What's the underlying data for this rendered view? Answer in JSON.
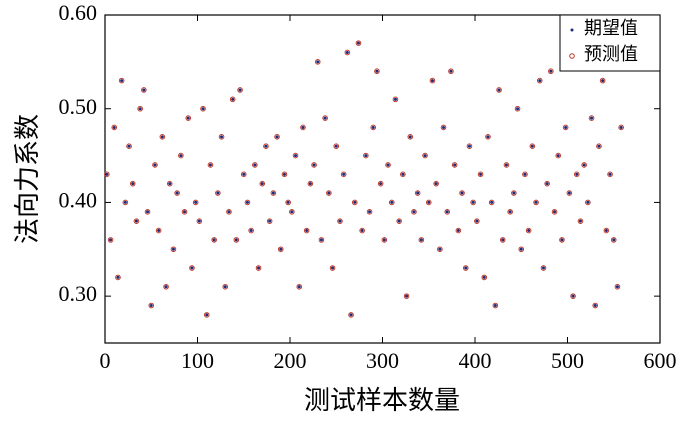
{
  "chart_data": {
    "type": "scatter",
    "xlabel": "测试样本数量",
    "ylabel": "法向力系数",
    "x": [
      2,
      6,
      10,
      14,
      18,
      22,
      26,
      30,
      34,
      38,
      42,
      46,
      50,
      54,
      58,
      62,
      66,
      70,
      74,
      78,
      82,
      86,
      90,
      94,
      98,
      102,
      106,
      110,
      114,
      118,
      122,
      126,
      130,
      134,
      138,
      142,
      146,
      150,
      154,
      158,
      162,
      166,
      170,
      174,
      178,
      182,
      186,
      190,
      194,
      198,
      202,
      206,
      210,
      214,
      218,
      222,
      226,
      230,
      234,
      238,
      242,
      246,
      250,
      254,
      258,
      262,
      266,
      270,
      274,
      278,
      282,
      286,
      290,
      294,
      298,
      302,
      306,
      310,
      314,
      318,
      322,
      326,
      330,
      334,
      338,
      342,
      346,
      350,
      354,
      358,
      362,
      366,
      370,
      374,
      378,
      382,
      386,
      390,
      394,
      398,
      402,
      406,
      410,
      414,
      418,
      422,
      426,
      430,
      434,
      438,
      442,
      446,
      450,
      454,
      458,
      462,
      466,
      470,
      474,
      478,
      482,
      486,
      490,
      494,
      498,
      502,
      506,
      510,
      514,
      518,
      522,
      526,
      530,
      534,
      538,
      542,
      546,
      550,
      554,
      558
    ],
    "series": [
      {
        "name": "期望值",
        "color": "#1f2a7a",
        "marker": "dot",
        "values": [
          0.43,
          0.36,
          0.48,
          0.32,
          0.53,
          0.4,
          0.46,
          0.42,
          0.38,
          0.5,
          0.52,
          0.39,
          0.29,
          0.44,
          0.37,
          0.47,
          0.31,
          0.42,
          0.35,
          0.41,
          0.45,
          0.39,
          0.49,
          0.33,
          0.4,
          0.38,
          0.5,
          0.28,
          0.44,
          0.36,
          0.41,
          0.47,
          0.31,
          0.39,
          0.51,
          0.36,
          0.52,
          0.43,
          0.4,
          0.37,
          0.44,
          0.33,
          0.42,
          0.46,
          0.38,
          0.41,
          0.47,
          0.35,
          0.43,
          0.4,
          0.39,
          0.45,
          0.31,
          0.48,
          0.37,
          0.42,
          0.44,
          0.55,
          0.36,
          0.49,
          0.41,
          0.33,
          0.46,
          0.38,
          0.43,
          0.56,
          0.28,
          0.4,
          0.57,
          0.37,
          0.45,
          0.39,
          0.48,
          0.54,
          0.42,
          0.36,
          0.44,
          0.4,
          0.51,
          0.38,
          0.43,
          0.3,
          0.47,
          0.39,
          0.41,
          0.36,
          0.45,
          0.4,
          0.53,
          0.42,
          0.35,
          0.48,
          0.39,
          0.54,
          0.44,
          0.37,
          0.41,
          0.33,
          0.46,
          0.4,
          0.38,
          0.43,
          0.32,
          0.47,
          0.4,
          0.29,
          0.52,
          0.36,
          0.44,
          0.39,
          0.41,
          0.5,
          0.35,
          0.43,
          0.37,
          0.46,
          0.4,
          0.53,
          0.33,
          0.42,
          0.54,
          0.39,
          0.45,
          0.36,
          0.48,
          0.41,
          0.3,
          0.43,
          0.38,
          0.44,
          0.4,
          0.49,
          0.29,
          0.46,
          0.53,
          0.37,
          0.43,
          0.36,
          0.31,
          0.48
        ]
      },
      {
        "name": "预测值",
        "color": "#c0392b",
        "marker": "circle",
        "values": [
          0.43,
          0.36,
          0.48,
          0.32,
          0.53,
          0.4,
          0.46,
          0.42,
          0.38,
          0.5,
          0.52,
          0.39,
          0.29,
          0.44,
          0.37,
          0.47,
          0.31,
          0.42,
          0.35,
          0.41,
          0.45,
          0.39,
          0.49,
          0.33,
          0.4,
          0.38,
          0.5,
          0.28,
          0.44,
          0.36,
          0.41,
          0.47,
          0.31,
          0.39,
          0.51,
          0.36,
          0.52,
          0.43,
          0.4,
          0.37,
          0.44,
          0.33,
          0.42,
          0.46,
          0.38,
          0.41,
          0.47,
          0.35,
          0.43,
          0.4,
          0.39,
          0.45,
          0.31,
          0.48,
          0.37,
          0.42,
          0.44,
          0.55,
          0.36,
          0.49,
          0.41,
          0.33,
          0.46,
          0.38,
          0.43,
          0.56,
          0.28,
          0.4,
          0.57,
          0.37,
          0.45,
          0.39,
          0.48,
          0.54,
          0.42,
          0.36,
          0.44,
          0.4,
          0.51,
          0.38,
          0.43,
          0.3,
          0.47,
          0.39,
          0.41,
          0.36,
          0.45,
          0.4,
          0.53,
          0.42,
          0.35,
          0.48,
          0.39,
          0.54,
          0.44,
          0.37,
          0.41,
          0.33,
          0.46,
          0.4,
          0.38,
          0.43,
          0.32,
          0.47,
          0.4,
          0.29,
          0.52,
          0.36,
          0.44,
          0.39,
          0.41,
          0.5,
          0.35,
          0.43,
          0.37,
          0.46,
          0.4,
          0.53,
          0.33,
          0.42,
          0.54,
          0.39,
          0.45,
          0.36,
          0.48,
          0.41,
          0.3,
          0.43,
          0.38,
          0.44,
          0.4,
          0.49,
          0.29,
          0.46,
          0.53,
          0.37,
          0.43,
          0.36,
          0.31,
          0.48
        ]
      }
    ],
    "xlim": [
      0,
      600
    ],
    "xticks": [
      0,
      100,
      200,
      300,
      400,
      500,
      600
    ],
    "ylim": [
      0.25,
      0.6
    ],
    "yticks": [
      {
        "value": 0.3,
        "label": "0.30"
      },
      {
        "value": 0.4,
        "label": "0.40"
      },
      {
        "value": 0.5,
        "label": "0.50"
      },
      {
        "value": 0.6,
        "label": "0.60"
      }
    ],
    "legend": "upper right",
    "grid": false
  }
}
